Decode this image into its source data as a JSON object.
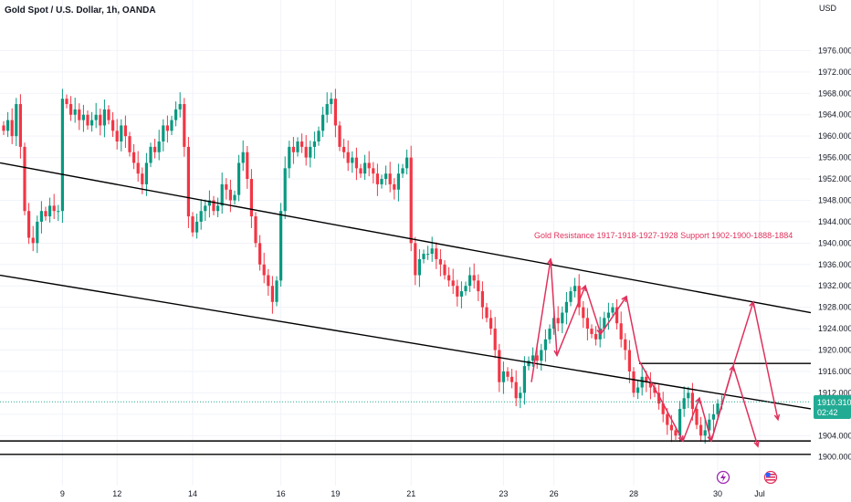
{
  "header": {
    "title": "Gold Spot / U.S. Dollar, 1h, OANDA",
    "currency": "USD"
  },
  "colors": {
    "up": "#089981",
    "down": "#f23645",
    "drawing": "#e0315c",
    "line": "#000000",
    "grid": "#f0f3fa"
  },
  "price_badge": {
    "price": "1910.310",
    "countdown": "02:42"
  },
  "annotation": "Gold Resistance 1917-1918-1927-1928 Support 1902-1900-1888-1884",
  "icons": {
    "event_1": "lightning-icon",
    "event_2": "us-flag-icon"
  },
  "chart_data": {
    "type": "candlestick",
    "title": "Gold Spot / U.S. Dollar, 1h, OANDA",
    "ylabel": "USD",
    "ylim": [
      1895,
      1980
    ],
    "x_ticks": [
      {
        "label": "9",
        "i": 14
      },
      {
        "label": "12",
        "i": 27
      },
      {
        "label": "14",
        "i": 45
      },
      {
        "label": "16",
        "i": 66
      },
      {
        "label": "19",
        "i": 79
      },
      {
        "label": "21",
        "i": 97
      },
      {
        "label": "23",
        "i": 119
      },
      {
        "label": "26",
        "i": 131
      },
      {
        "label": "28",
        "i": 150
      },
      {
        "label": "30",
        "i": 170
      },
      {
        "label": "Jul",
        "i": 180
      }
    ],
    "y_ticks": [
      1900,
      1904,
      1908,
      1912,
      1916,
      1920,
      1924,
      1928,
      1932,
      1936,
      1940,
      1944,
      1948,
      1952,
      1956,
      1960,
      1964,
      1968,
      1972,
      1976
    ],
    "y_tick_labels": [
      "1900.000",
      "1904.000",
      "1908.000",
      "1912.000",
      "1916.000",
      "1920.000",
      "1924.000",
      "1928.000",
      "1932.000",
      "1936.000",
      "1940.000",
      "1944.000",
      "1948.000",
      "1952.000",
      "1956.000",
      "1960.000",
      "1964.000",
      "1968.000",
      "1972.000",
      "1976.000"
    ],
    "bar_count": 190,
    "closes": [
      1961,
      1963,
      1960,
      1966,
      1958,
      1946,
      1941,
      1940,
      1944,
      1946,
      1945,
      1947,
      1946,
      1946,
      1967,
      1966,
      1964,
      1965,
      1963,
      1964,
      1962,
      1963,
      1964,
      1962,
      1965,
      1963,
      1961,
      1959,
      1962,
      1960,
      1957,
      1955,
      1953,
      1951,
      1955,
      1958,
      1957,
      1959,
      1962,
      1961,
      1963,
      1965,
      1966,
      1958,
      1945,
      1942,
      1944,
      1946,
      1947,
      1948,
      1946,
      1947,
      1951,
      1950,
      1948,
      1949,
      1955,
      1957,
      1952,
      1945,
      1940,
      1936,
      1934,
      1932,
      1929,
      1933,
      1946,
      1954,
      1958,
      1957,
      1959,
      1958,
      1956,
      1958,
      1959,
      1961,
      1964,
      1966,
      1967,
      1962,
      1958,
      1957,
      1955,
      1956,
      1954,
      1953,
      1955,
      1954,
      1953,
      1951,
      1952,
      1953,
      1951,
      1950,
      1953,
      1954,
      1956,
      1940,
      1934,
      1937,
      1938,
      1938,
      1939,
      1937,
      1936,
      1934,
      1933,
      1932,
      1930,
      1931,
      1932,
      1934,
      1933,
      1931,
      1928,
      1926,
      1924,
      1920,
      1914,
      1916,
      1915,
      1914,
      1911,
      1912,
      1917,
      1918,
      1919,
      1918,
      1920,
      1922,
      1924,
      1926,
      1925,
      1927,
      1929,
      1931,
      1932,
      1928,
      1926,
      1924,
      1923,
      1922,
      1924,
      1926,
      1927,
      1928,
      1925,
      1922,
      1920,
      1916,
      1912,
      1913,
      1915,
      1914,
      1913,
      1912,
      1910,
      1908,
      1906,
      1905,
      1904,
      1909,
      1911,
      1912,
      1909,
      1906,
      1904,
      1905,
      1907,
      1908,
      1910,
      1910
    ],
    "fit_window": {
      "x0": 583,
      "x1": 600,
      "y0": 1906,
      "y1": 1900
    },
    "lines": [
      {
        "name": "upper-channel-line",
        "x1": 0,
        "y1": 1955,
        "x2": 888,
        "y2": 1927
      },
      {
        "name": "lower-channel-line",
        "x1": 0,
        "y1": 1934,
        "x2": 888,
        "y2": 1909
      },
      {
        "name": "resistance-line",
        "x1": 700,
        "y1": 1917.5,
        "x2": 888,
        "y2": 1917.5
      },
      {
        "name": "support-line-1902",
        "x1": 0,
        "y1": 1903,
        "x2": 888,
        "y2": 1903
      },
      {
        "name": "support-line-1900",
        "x1": 0,
        "y1": 1900.5,
        "x2": 888,
        "y2": 1900.5
      }
    ],
    "projection_1": [
      [
        582,
        1914
      ],
      [
        603,
        1937
      ],
      [
        610,
        1919
      ],
      [
        641,
        1932
      ],
      [
        658,
        1923
      ],
      [
        686,
        1930
      ],
      [
        700,
        1918
      ],
      [
        723,
        1911
      ],
      [
        748,
        1903
      ],
      [
        766,
        1911
      ],
      [
        779,
        1903
      ],
      [
        803,
        1917
      ],
      [
        830,
        1902
      ]
    ],
    "projection_2": [
      [
        779,
        1903
      ],
      [
        803,
        1917
      ],
      [
        825,
        1929
      ],
      [
        852,
        1907
      ]
    ]
  }
}
